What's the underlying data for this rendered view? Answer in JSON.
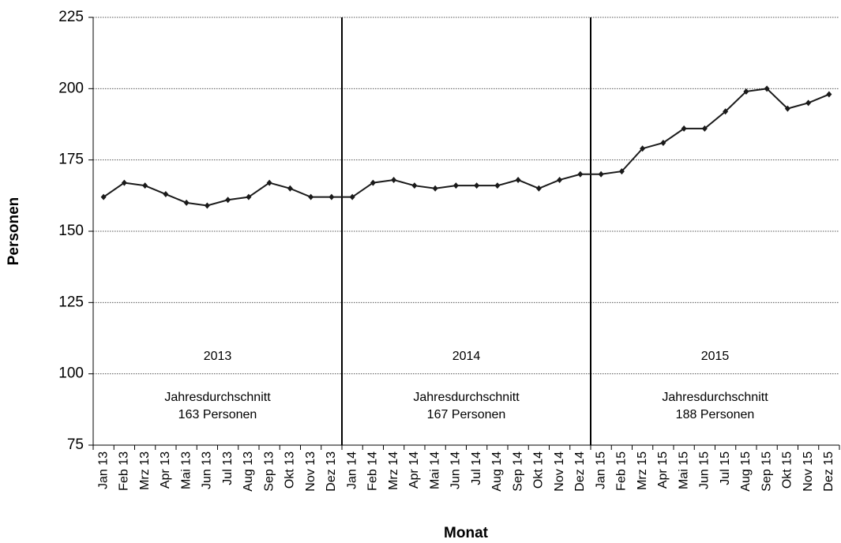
{
  "chart_data": {
    "type": "line",
    "y_label": "Personen",
    "x_label": "Monat",
    "categories": [
      "Jan 13",
      "Feb 13",
      "Mrz 13",
      "Apr 13",
      "Mai 13",
      "Jun 13",
      "Jul 13",
      "Aug 13",
      "Sep 13",
      "Okt 13",
      "Nov 13",
      "Dez 13",
      "Jan 14",
      "Feb 14",
      "Mrz 14",
      "Apr 14",
      "Mai 14",
      "Jun 14",
      "Jul 14",
      "Aug 14",
      "Sep 14",
      "Okt 14",
      "Nov 14",
      "Dez 14",
      "Jan 15",
      "Feb 15",
      "Mrz 15",
      "Apr 15",
      "Mai 15",
      "Jun 15",
      "Jul 15",
      "Aug 15",
      "Sep 15",
      "Okt 15",
      "Nov 15",
      "Dez 15"
    ],
    "series": [
      {
        "name": "Personen",
        "color": "#1a1a1a",
        "values": [
          162,
          167,
          166,
          163,
          160,
          159,
          161,
          162,
          167,
          165,
          162,
          162,
          162,
          167,
          168,
          166,
          165,
          166,
          166,
          166,
          168,
          165,
          168,
          170,
          170,
          171,
          179,
          181,
          186,
          186,
          192,
          199,
          200,
          193,
          195,
          198
        ]
      }
    ],
    "ylim": [
      75,
      225
    ],
    "yticks": [
      75,
      100,
      125,
      150,
      175,
      200,
      225
    ],
    "grid": true,
    "periods": [
      {
        "label": "2013",
        "note": [
          "Jahresdurchschnitt",
          "163 Personen"
        ]
      },
      {
        "label": "2014",
        "note": [
          "Jahresdurchschnitt",
          "167 Personen"
        ]
      },
      {
        "label": "2015",
        "note": [
          "Jahresdurchschnitt",
          "188 Personen"
        ]
      }
    ]
  }
}
